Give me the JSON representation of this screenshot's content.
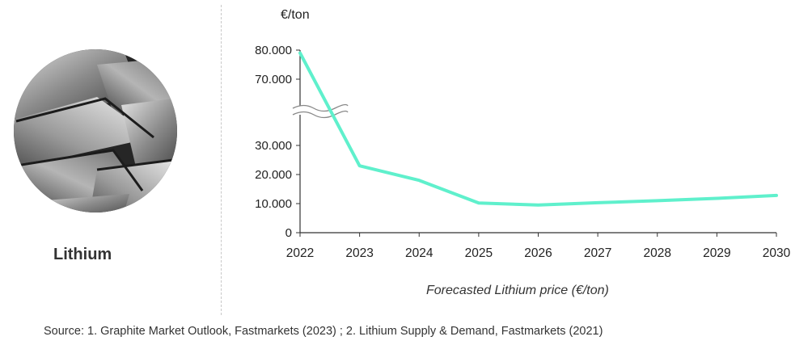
{
  "material": {
    "name": "Lithium",
    "image": "lithium-metal-photo"
  },
  "caption": "Forecasted Lithium price (€/ton)",
  "source": "Source: 1. Graphite Market Outlook, Fastmarkets (2023) ; 2. Lithium Supply & Demand, Fastmarkets (2021)",
  "chart_data": {
    "type": "line",
    "ylabel": "€/ton",
    "x": [
      2022,
      2023,
      2024,
      2025,
      2026,
      2027,
      2028,
      2029,
      2030
    ],
    "x_tick_labels": [
      "2022",
      "2023",
      "2024",
      "2025",
      "2026",
      "2027",
      "2028",
      "2029",
      "2030"
    ],
    "series": [
      {
        "values": [
          79000,
          23000,
          18000,
          10200,
          9500,
          10300,
          11000,
          11800,
          12800
        ],
        "color": "#5ff0cc"
      }
    ],
    "ylim": [
      0,
      80000
    ],
    "axis_break": [
      35000,
      65000
    ],
    "y_ticks_lower": [
      0,
      10000,
      20000,
      30000
    ],
    "y_tick_labels_lower": [
      "0",
      "10.000",
      "20.000",
      "30.000"
    ],
    "y_ticks_upper": [
      70000,
      80000
    ],
    "y_tick_labels_upper": [
      "70.000",
      "80.000"
    ],
    "grid": false,
    "legend": "none"
  }
}
